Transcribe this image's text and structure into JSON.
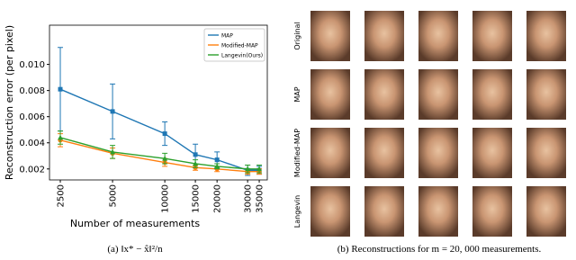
{
  "chart_data": {
    "type": "line",
    "xlabel": "Number of measurements",
    "ylabel": "Reconstruction error (per pixel)",
    "caption": "(a) ‖x* − x̂‖²/n",
    "xscale": "log",
    "x": [
      2500,
      5000,
      10000,
      15000,
      20000,
      30000,
      35000
    ],
    "xlim": [
      2166,
      38950
    ],
    "xticks": [
      2500,
      5000,
      10000,
      15000,
      20000,
      30000,
      35000
    ],
    "ylim": [
      0.00116,
      0.013
    ],
    "yticks": [
      0.002,
      0.004,
      0.006,
      0.008,
      {
        "value": 0.01,
        "label": "0.010"
      }
    ],
    "legend": "upper right",
    "series": [
      {
        "name": "MAP",
        "color": "#1f77b4",
        "marker": "square",
        "values": [
          0.0081,
          0.0064,
          0.0047,
          0.0031,
          0.0027,
          0.0019,
          0.0019
        ],
        "errors": [
          0.0032,
          0.0021,
          0.0009,
          0.0008,
          0.0006,
          0.0004,
          0.0003
        ]
      },
      {
        "name": "Modified-MAP",
        "color": "#ff7f0e",
        "marker": "circle",
        "values": [
          0.0042,
          0.0032,
          0.0025,
          0.0021,
          0.002,
          0.0018,
          0.0018
        ],
        "errors": [
          0.0005,
          0.0004,
          0.0003,
          0.0002,
          0.0002,
          0.0002,
          0.0002
        ]
      },
      {
        "name": "Langevin(Ours)",
        "color": "#2ca02c",
        "marker": "triangle",
        "values": [
          0.0044,
          0.0033,
          0.0028,
          0.0024,
          0.0022,
          0.002,
          0.002
        ],
        "errors": [
          0.0005,
          0.0005,
          0.0004,
          0.0003,
          0.0002,
          0.0003,
          0.0003
        ]
      }
    ]
  },
  "images": {
    "caption": "(b) Reconstructions for m = 20, 000 measurements.",
    "row_labels": [
      "Original",
      "MAP",
      "Modified-MAP",
      "Langevin"
    ]
  }
}
